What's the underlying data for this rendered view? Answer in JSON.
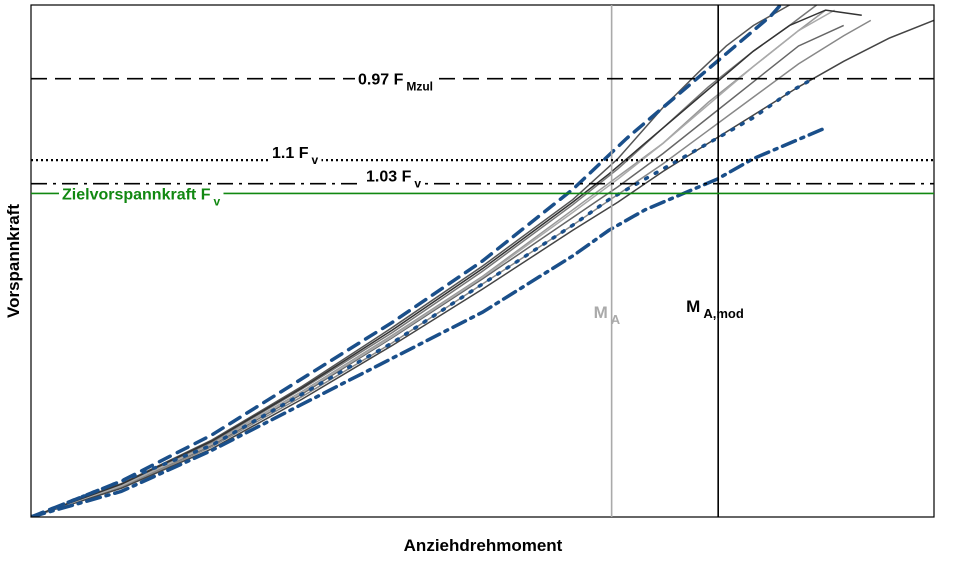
{
  "chart_data": {
    "type": "line",
    "title": "",
    "xlabel": "Anziehdrehmoment",
    "ylabel": "Vorspannkraft",
    "xlim": [
      0,
      100
    ],
    "ylim": [
      0,
      100
    ],
    "grid": false,
    "reference_lines": [
      {
        "name": "0.97 F_Mzul",
        "label": "0.97 F",
        "sub": "Mzul",
        "y": 85.6,
        "style": "dashed",
        "color": "#000000"
      },
      {
        "name": "1.1 F_v",
        "label": "1.1 F",
        "sub": "v",
        "y": 69.7,
        "style": "dotted",
        "color": "#000000"
      },
      {
        "name": "1.03 F_v",
        "label": "1.03 F",
        "sub": "v",
        "y": 65.1,
        "style": "dashdot",
        "color": "#000000"
      },
      {
        "name": "Zielvorspannkraft F_v",
        "label": "Zielvorspannkraft F",
        "sub": "v",
        "y": 63.2,
        "style": "solid",
        "color": "#118811"
      }
    ],
    "vertical_lines": [
      {
        "name": "M_A",
        "label": "M",
        "sub": "A",
        "x": 64.3,
        "color": "#aaaaaa"
      },
      {
        "name": "M_A,mod",
        "label": "M",
        "sub": "A,mod",
        "x": 76.1,
        "color": "#000000"
      }
    ],
    "envelopes": [
      {
        "style": "dashed",
        "color": "#1a4f8a",
        "x": [
          0,
          10,
          20,
          30,
          40,
          50,
          60,
          66,
          70,
          74,
          78,
          82,
          84
        ],
        "y": [
          0,
          7,
          16,
          27,
          38,
          50,
          64,
          74,
          80,
          86,
          92,
          98,
          102
        ]
      },
      {
        "style": "dashdot",
        "color": "#1a4f8a",
        "x": [
          0,
          10,
          20,
          30,
          40,
          50,
          60,
          64,
          68,
          72,
          76,
          80,
          84,
          88
        ],
        "y": [
          0,
          5,
          13,
          22,
          31,
          40,
          51,
          56,
          60,
          63,
          66,
          70,
          73,
          76
        ]
      },
      {
        "style": "dotted",
        "color": "#1a4f8a",
        "x": [
          0,
          20,
          40,
          60,
          64,
          68,
          72,
          76,
          80,
          84,
          86
        ],
        "y": [
          0,
          14,
          34,
          57,
          62,
          66,
          70,
          74,
          78,
          83,
          85
        ]
      }
    ],
    "series": [
      {
        "color": "#555555",
        "x": [
          0,
          10,
          20,
          30,
          40,
          50,
          60,
          65,
          70,
          74,
          77,
          80,
          83,
          85
        ],
        "y": [
          0,
          6.5,
          15,
          25.5,
          37,
          49,
          62,
          70,
          80,
          87,
          92,
          96,
          99,
          101
        ]
      },
      {
        "color": "#777777",
        "x": [
          0,
          10,
          20,
          30,
          40,
          50,
          60,
          65,
          70,
          75,
          80,
          84,
          87
        ],
        "y": [
          0,
          6.3,
          14.6,
          25,
          36,
          48,
          61,
          68,
          76,
          84,
          91,
          96,
          100
        ]
      },
      {
        "color": "#999999",
        "x": [
          0,
          10,
          20,
          30,
          40,
          50,
          60,
          65,
          70,
          75,
          80,
          85,
          88
        ],
        "y": [
          0,
          6.2,
          14.3,
          24.5,
          35.5,
          47,
          60,
          66.5,
          73,
          81,
          88,
          95,
          99
        ]
      },
      {
        "color": "#666666",
        "x": [
          0,
          10,
          20,
          30,
          40,
          50,
          60,
          65,
          70,
          75,
          80,
          85,
          90
        ],
        "y": [
          0,
          6,
          14,
          24,
          35,
          46.5,
          58.5,
          64.5,
          71,
          78,
          85,
          92,
          96
        ]
      },
      {
        "color": "#888888",
        "x": [
          0,
          10,
          20,
          30,
          40,
          50,
          60,
          65,
          70,
          75,
          80,
          85,
          90,
          93
        ],
        "y": [
          0,
          5.8,
          13.7,
          23.5,
          34,
          45.5,
          57,
          63,
          69,
          75.5,
          82,
          88.5,
          94,
          97
        ]
      },
      {
        "color": "#444444",
        "x": [
          0,
          10,
          20,
          30,
          40,
          50,
          60,
          65,
          70,
          75,
          80,
          85,
          90,
          95,
          100
        ],
        "y": [
          0,
          5.6,
          13.3,
          23,
          33.5,
          44.5,
          56,
          61.5,
          67.5,
          73,
          78.5,
          84,
          89,
          93.5,
          97
        ]
      },
      {
        "color": "#aaaaaa",
        "x": [
          0,
          10,
          20,
          30,
          40,
          50,
          60,
          65,
          70,
          75,
          80,
          85,
          89
        ],
        "y": [
          0,
          6.1,
          14.2,
          24.3,
          35.2,
          46.8,
          59.5,
          66,
          73,
          80.5,
          88,
          95,
          99
        ]
      },
      {
        "color": "#333333",
        "x": [
          0,
          10,
          20,
          30,
          40,
          50,
          60,
          64,
          68,
          72,
          76,
          80,
          84,
          88,
          92
        ],
        "y": [
          0,
          6.4,
          14.8,
          25.2,
          36.5,
          48.5,
          61.5,
          67,
          73,
          79,
          85,
          91,
          96,
          99,
          98
        ]
      }
    ]
  }
}
